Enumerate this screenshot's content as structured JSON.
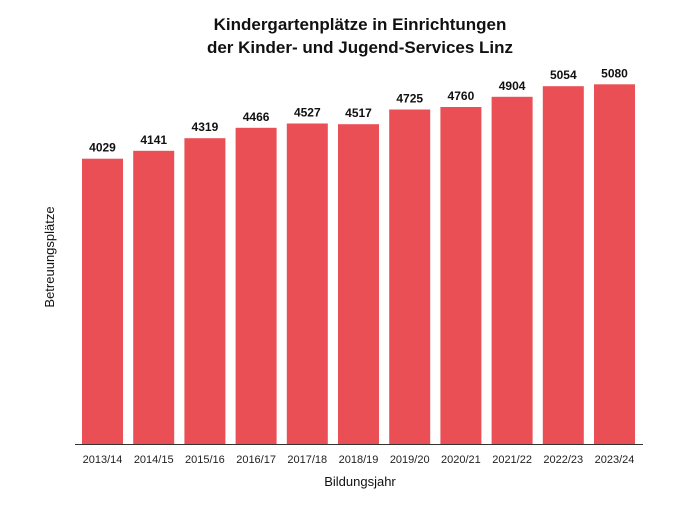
{
  "chart_data": {
    "type": "bar",
    "title_line1": "Kindergartenplätze in Einrichtungen",
    "title_line2": "der Kinder- und Jugend-Services Linz",
    "xlabel": "Bildungsjahr",
    "ylabel": "Betreuungsplätze",
    "categories": [
      "2013/14",
      "2014/15",
      "2015/16",
      "2016/17",
      "2017/18",
      "2018/19",
      "2019/20",
      "2020/21",
      "2021/22",
      "2022/23",
      "2023/24"
    ],
    "values": [
      4029,
      4141,
      4319,
      4466,
      4527,
      4517,
      4725,
      4760,
      4904,
      5054,
      5080
    ],
    "ylim": [
      0,
      5200
    ],
    "grid": false,
    "data_labels": true,
    "bar_color": "#e94f55"
  }
}
